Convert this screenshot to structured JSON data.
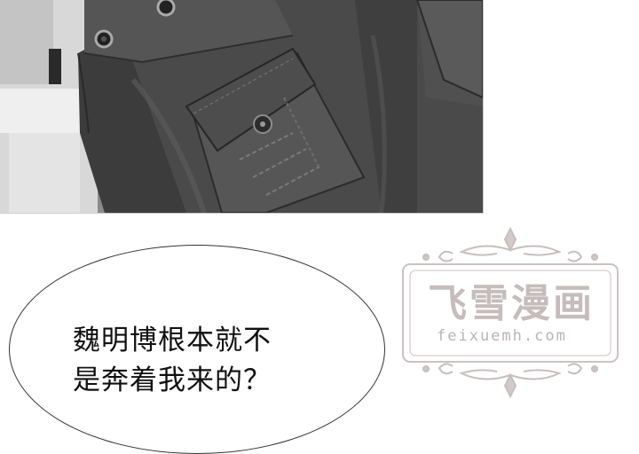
{
  "speech_bubble": {
    "line_1": "魏明博根本就不",
    "line_2": "是奔着我来的？"
  },
  "watermark": {
    "title": "飞雪漫画",
    "url": "feixuemh.com"
  },
  "colors": {
    "panel_dark": "#3a3a3a",
    "panel_mid": "#6a6a6a",
    "bubble_border": "#333333",
    "watermark": "#c6bcbc"
  },
  "icons": [
    "eyelet-icon",
    "button-icon",
    "ornament-flourish"
  ]
}
